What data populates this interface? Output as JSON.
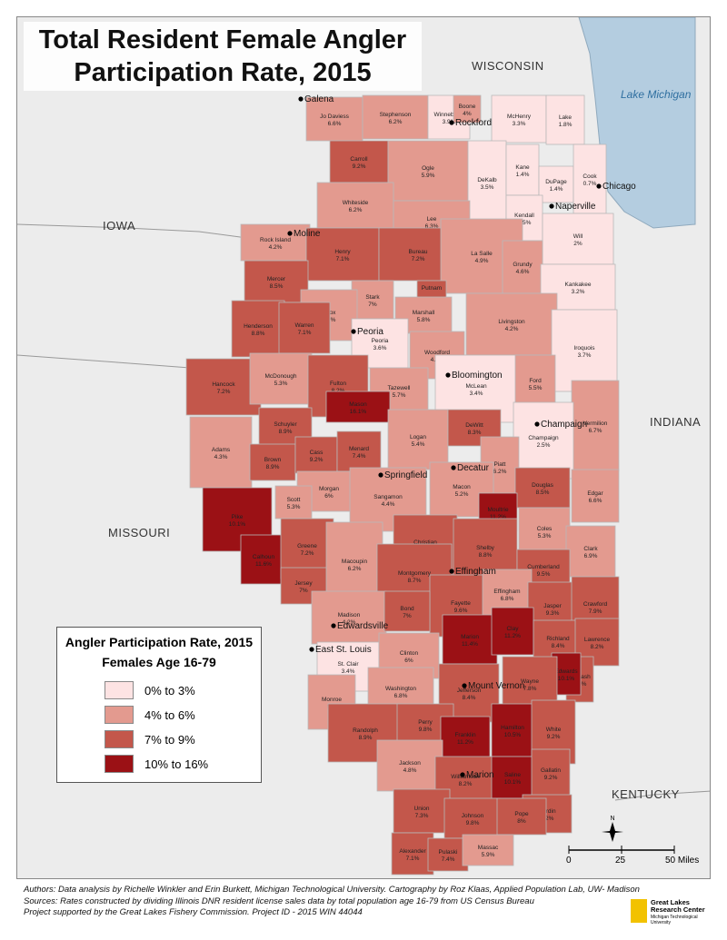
{
  "title": {
    "line1": "Total Resident Female Angler",
    "line2": "Participation Rate, 2015"
  },
  "states": {
    "wisconsin": "WISCONSIN",
    "iowa": "IOWA",
    "missouri": "MISSOURI",
    "indiana": "INDIANA",
    "kentucky": "KENTUCKY"
  },
  "lake": "Lake Michigan",
  "colors": {
    "c0": "#fde3e3",
    "c1": "#e39a8f",
    "c2": "#c3574b",
    "c3": "#9b1115",
    "land": "#ececec",
    "water": "#b4cde0"
  },
  "counties": [
    {
      "name": "Jo Daviess",
      "pct": "6.6%",
      "cls": 1
    },
    {
      "name": "Stephenson",
      "pct": "6.2%",
      "cls": 1
    },
    {
      "name": "Winnebago",
      "pct": "3.9%",
      "cls": 0
    },
    {
      "name": "Boone",
      "pct": "4%",
      "cls": 1
    },
    {
      "name": "McHenry",
      "pct": "3.3%",
      "cls": 0
    },
    {
      "name": "Lake",
      "pct": "1.8%",
      "cls": 0
    },
    {
      "name": "Carroll",
      "pct": "9.2%",
      "cls": 2
    },
    {
      "name": "Ogle",
      "pct": "5.9%",
      "cls": 1
    },
    {
      "name": "DeKalb",
      "pct": "3.5%",
      "cls": 0
    },
    {
      "name": "Kane",
      "pct": "1.4%",
      "cls": 0
    },
    {
      "name": "DuPage",
      "pct": "1.4%",
      "cls": 0
    },
    {
      "name": "Cook",
      "pct": "0.7%",
      "cls": 0
    },
    {
      "name": "Whiteside",
      "pct": "6.2%",
      "cls": 1
    },
    {
      "name": "Lee",
      "pct": "6.3%",
      "cls": 1
    },
    {
      "name": "Kendall",
      "pct": "2.5%",
      "cls": 0
    },
    {
      "name": "Will",
      "pct": "2%",
      "cls": 0
    },
    {
      "name": "Rock Island",
      "pct": "4.2%",
      "cls": 1
    },
    {
      "name": "Henry",
      "pct": "7.1%",
      "cls": 2
    },
    {
      "name": "Bureau",
      "pct": "7.2%",
      "cls": 2
    },
    {
      "name": "La Salle",
      "pct": "4.9%",
      "cls": 1
    },
    {
      "name": "Grundy",
      "pct": "4.6%",
      "cls": 1
    },
    {
      "name": "Kankakee",
      "pct": "3.2%",
      "cls": 0
    },
    {
      "name": "Mercer",
      "pct": "8.5%",
      "cls": 2
    },
    {
      "name": "Putnam",
      "pct": "",
      "cls": 2
    },
    {
      "name": "Stark",
      "pct": "7%",
      "cls": 1
    },
    {
      "name": "Marshall",
      "pct": "5.8%",
      "cls": 1
    },
    {
      "name": "Knox",
      "pct": "5.7%",
      "cls": 1
    },
    {
      "name": "Livingston",
      "pct": "4.2%",
      "cls": 1
    },
    {
      "name": "Henderson",
      "pct": "8.8%",
      "cls": 2
    },
    {
      "name": "Warren",
      "pct": "7.1%",
      "cls": 2
    },
    {
      "name": "Peoria",
      "pct": "3.6%",
      "cls": 0
    },
    {
      "name": "Woodford",
      "pct": "4.7%",
      "cls": 1
    },
    {
      "name": "Iroquois",
      "pct": "3.7%",
      "cls": 0
    },
    {
      "name": "Hancock",
      "pct": "7.2%",
      "cls": 2
    },
    {
      "name": "McDonough",
      "pct": "5.3%",
      "cls": 1
    },
    {
      "name": "Fulton",
      "pct": "8.2%",
      "cls": 2
    },
    {
      "name": "Tazewell",
      "pct": "5.7%",
      "cls": 1
    },
    {
      "name": "McLean",
      "pct": "3.4%",
      "cls": 0
    },
    {
      "name": "Ford",
      "pct": "5.5%",
      "cls": 1
    },
    {
      "name": "Mason",
      "pct": "16.1%",
      "cls": 3
    },
    {
      "name": "Vermilion",
      "pct": "6.7%",
      "cls": 1
    },
    {
      "name": "Schuyler",
      "pct": "8.9%",
      "cls": 2
    },
    {
      "name": "Logan",
      "pct": "5.4%",
      "cls": 1
    },
    {
      "name": "DeWitt",
      "pct": "8.3%",
      "cls": 2
    },
    {
      "name": "Champaign",
      "pct": "2.5%",
      "cls": 0
    },
    {
      "name": "Adams",
      "pct": "4.3%",
      "cls": 1
    },
    {
      "name": "Brown",
      "pct": "8.9%",
      "cls": 2
    },
    {
      "name": "Cass",
      "pct": "9.2%",
      "cls": 2
    },
    {
      "name": "Menard",
      "pct": "7.4%",
      "cls": 2
    },
    {
      "name": "Piatt",
      "pct": "6.2%",
      "cls": 1
    },
    {
      "name": "Morgan",
      "pct": "6%",
      "cls": 1
    },
    {
      "name": "Sangamon",
      "pct": "4.4%",
      "cls": 1
    },
    {
      "name": "Macon",
      "pct": "5.2%",
      "cls": 1
    },
    {
      "name": "Douglas",
      "pct": "8.5%",
      "cls": 2
    },
    {
      "name": "Edgar",
      "pct": "6.6%",
      "cls": 1
    },
    {
      "name": "Pike",
      "pct": "10.1%",
      "cls": 3
    },
    {
      "name": "Scott",
      "pct": "5.3%",
      "cls": 1
    },
    {
      "name": "Christian",
      "pct": "8.9%",
      "cls": 2
    },
    {
      "name": "Moultrie",
      "pct": "11.2%",
      "cls": 3
    },
    {
      "name": "Coles",
      "pct": "5.3%",
      "cls": 1
    },
    {
      "name": "Calhoun",
      "pct": "11.6%",
      "cls": 3
    },
    {
      "name": "Greene",
      "pct": "7.2%",
      "cls": 2
    },
    {
      "name": "Macoupin",
      "pct": "6.2%",
      "cls": 1
    },
    {
      "name": "Shelby",
      "pct": "8.8%",
      "cls": 2
    },
    {
      "name": "Clark",
      "pct": "6.9%",
      "cls": 1
    },
    {
      "name": "Cumberland",
      "pct": "9.5%",
      "cls": 2
    },
    {
      "name": "Jersey",
      "pct": "7%",
      "cls": 2
    },
    {
      "name": "Montgomery",
      "pct": "8.7%",
      "cls": 2
    },
    {
      "name": "Fayette",
      "pct": "9.6%",
      "cls": 2
    },
    {
      "name": "Effingham",
      "pct": "6.8%",
      "cls": 1
    },
    {
      "name": "Jasper",
      "pct": "9.3%",
      "cls": 2
    },
    {
      "name": "Crawford",
      "pct": "7.9%",
      "cls": 2
    },
    {
      "name": "Madison",
      "pct": "4.2%",
      "cls": 1
    },
    {
      "name": "Bond",
      "pct": "7%",
      "cls": 2
    },
    {
      "name": "Marion",
      "pct": "11.4%",
      "cls": 3
    },
    {
      "name": "Clay",
      "pct": "11.2%",
      "cls": 3
    },
    {
      "name": "Richland",
      "pct": "8.4%",
      "cls": 2
    },
    {
      "name": "Lawrence",
      "pct": "8.2%",
      "cls": 2
    },
    {
      "name": "St. Clair",
      "pct": "3.4%",
      "cls": 0
    },
    {
      "name": "Clinton",
      "pct": "6%",
      "cls": 1
    },
    {
      "name": "Wabash",
      "pct": "7.4%",
      "cls": 2
    },
    {
      "name": "Edwards",
      "pct": "10.1%",
      "cls": 3
    },
    {
      "name": "Monroe",
      "pct": "5%",
      "cls": 1
    },
    {
      "name": "Washington",
      "pct": "6.8%",
      "cls": 1
    },
    {
      "name": "Wayne",
      "pct": "7.8%",
      "cls": 2
    },
    {
      "name": "Jefferson",
      "pct": "8.4%",
      "cls": 2
    },
    {
      "name": "Randolph",
      "pct": "8.9%",
      "cls": 2
    },
    {
      "name": "Perry",
      "pct": "9.8%",
      "cls": 2
    },
    {
      "name": "Franklin",
      "pct": "11.2%",
      "cls": 3
    },
    {
      "name": "Hamilton",
      "pct": "10.5%",
      "cls": 3
    },
    {
      "name": "White",
      "pct": "9.2%",
      "cls": 2
    },
    {
      "name": "Jackson",
      "pct": "4.8%",
      "cls": 1
    },
    {
      "name": "Williamson",
      "pct": "8.2%",
      "cls": 2
    },
    {
      "name": "Saline",
      "pct": "10.1%",
      "cls": 3
    },
    {
      "name": "Gallatin",
      "pct": "9.2%",
      "cls": 2
    },
    {
      "name": "Hardin",
      "pct": "9.2%",
      "cls": 2
    },
    {
      "name": "Union",
      "pct": "7.3%",
      "cls": 2
    },
    {
      "name": "Johnson",
      "pct": "9.8%",
      "cls": 2
    },
    {
      "name": "Pope",
      "pct": "8%",
      "cls": 2
    },
    {
      "name": "Alexander",
      "pct": "7.1%",
      "cls": 2
    },
    {
      "name": "Pulaski",
      "pct": "7.4%",
      "cls": 2
    },
    {
      "name": "Massac",
      "pct": "5.9%",
      "cls": 1
    }
  ],
  "cities": [
    "Galena",
    "Rockford",
    "Chicago",
    "Naperville",
    "Moline",
    "Peoria",
    "Bloomington",
    "Champaign",
    "Springfield",
    "Decatur",
    "Effingham",
    "Edwardsville",
    "East St. Louis",
    "Mount Vernon",
    "Marion"
  ],
  "legend": {
    "title": "Angler Participation Rate, 2015",
    "subtitle": "Females Age 16-79",
    "items": [
      {
        "label": "0% to 3%",
        "color": "#fde3e3"
      },
      {
        "label": "4% to 6%",
        "color": "#e39a8f"
      },
      {
        "label": "7% to 9%",
        "color": "#c3574b"
      },
      {
        "label": "10% to 16%",
        "color": "#9b1115"
      }
    ]
  },
  "scale": {
    "ticks": [
      "0",
      "25",
      "50 Miles"
    ],
    "north": "N"
  },
  "credits": {
    "line1": "Authors: Data analysis by Richelle Winkler and Erin Burkett, Michigan Technological University. Cartography by Roz Klaas, Applied Population Lab, UW- Madison",
    "line2": "Sources: Rates constructed by dividing Illinois DNR resident license sales data by total population age 16-79 from US Census Bureau",
    "line3": "Project supported by the Great Lakes Fishery Commission. Project ID - 2015 WIN 44044"
  },
  "logo": {
    "line1": "Great Lakes",
    "line2": "Research Center",
    "line3": "Michigan Technological University"
  }
}
